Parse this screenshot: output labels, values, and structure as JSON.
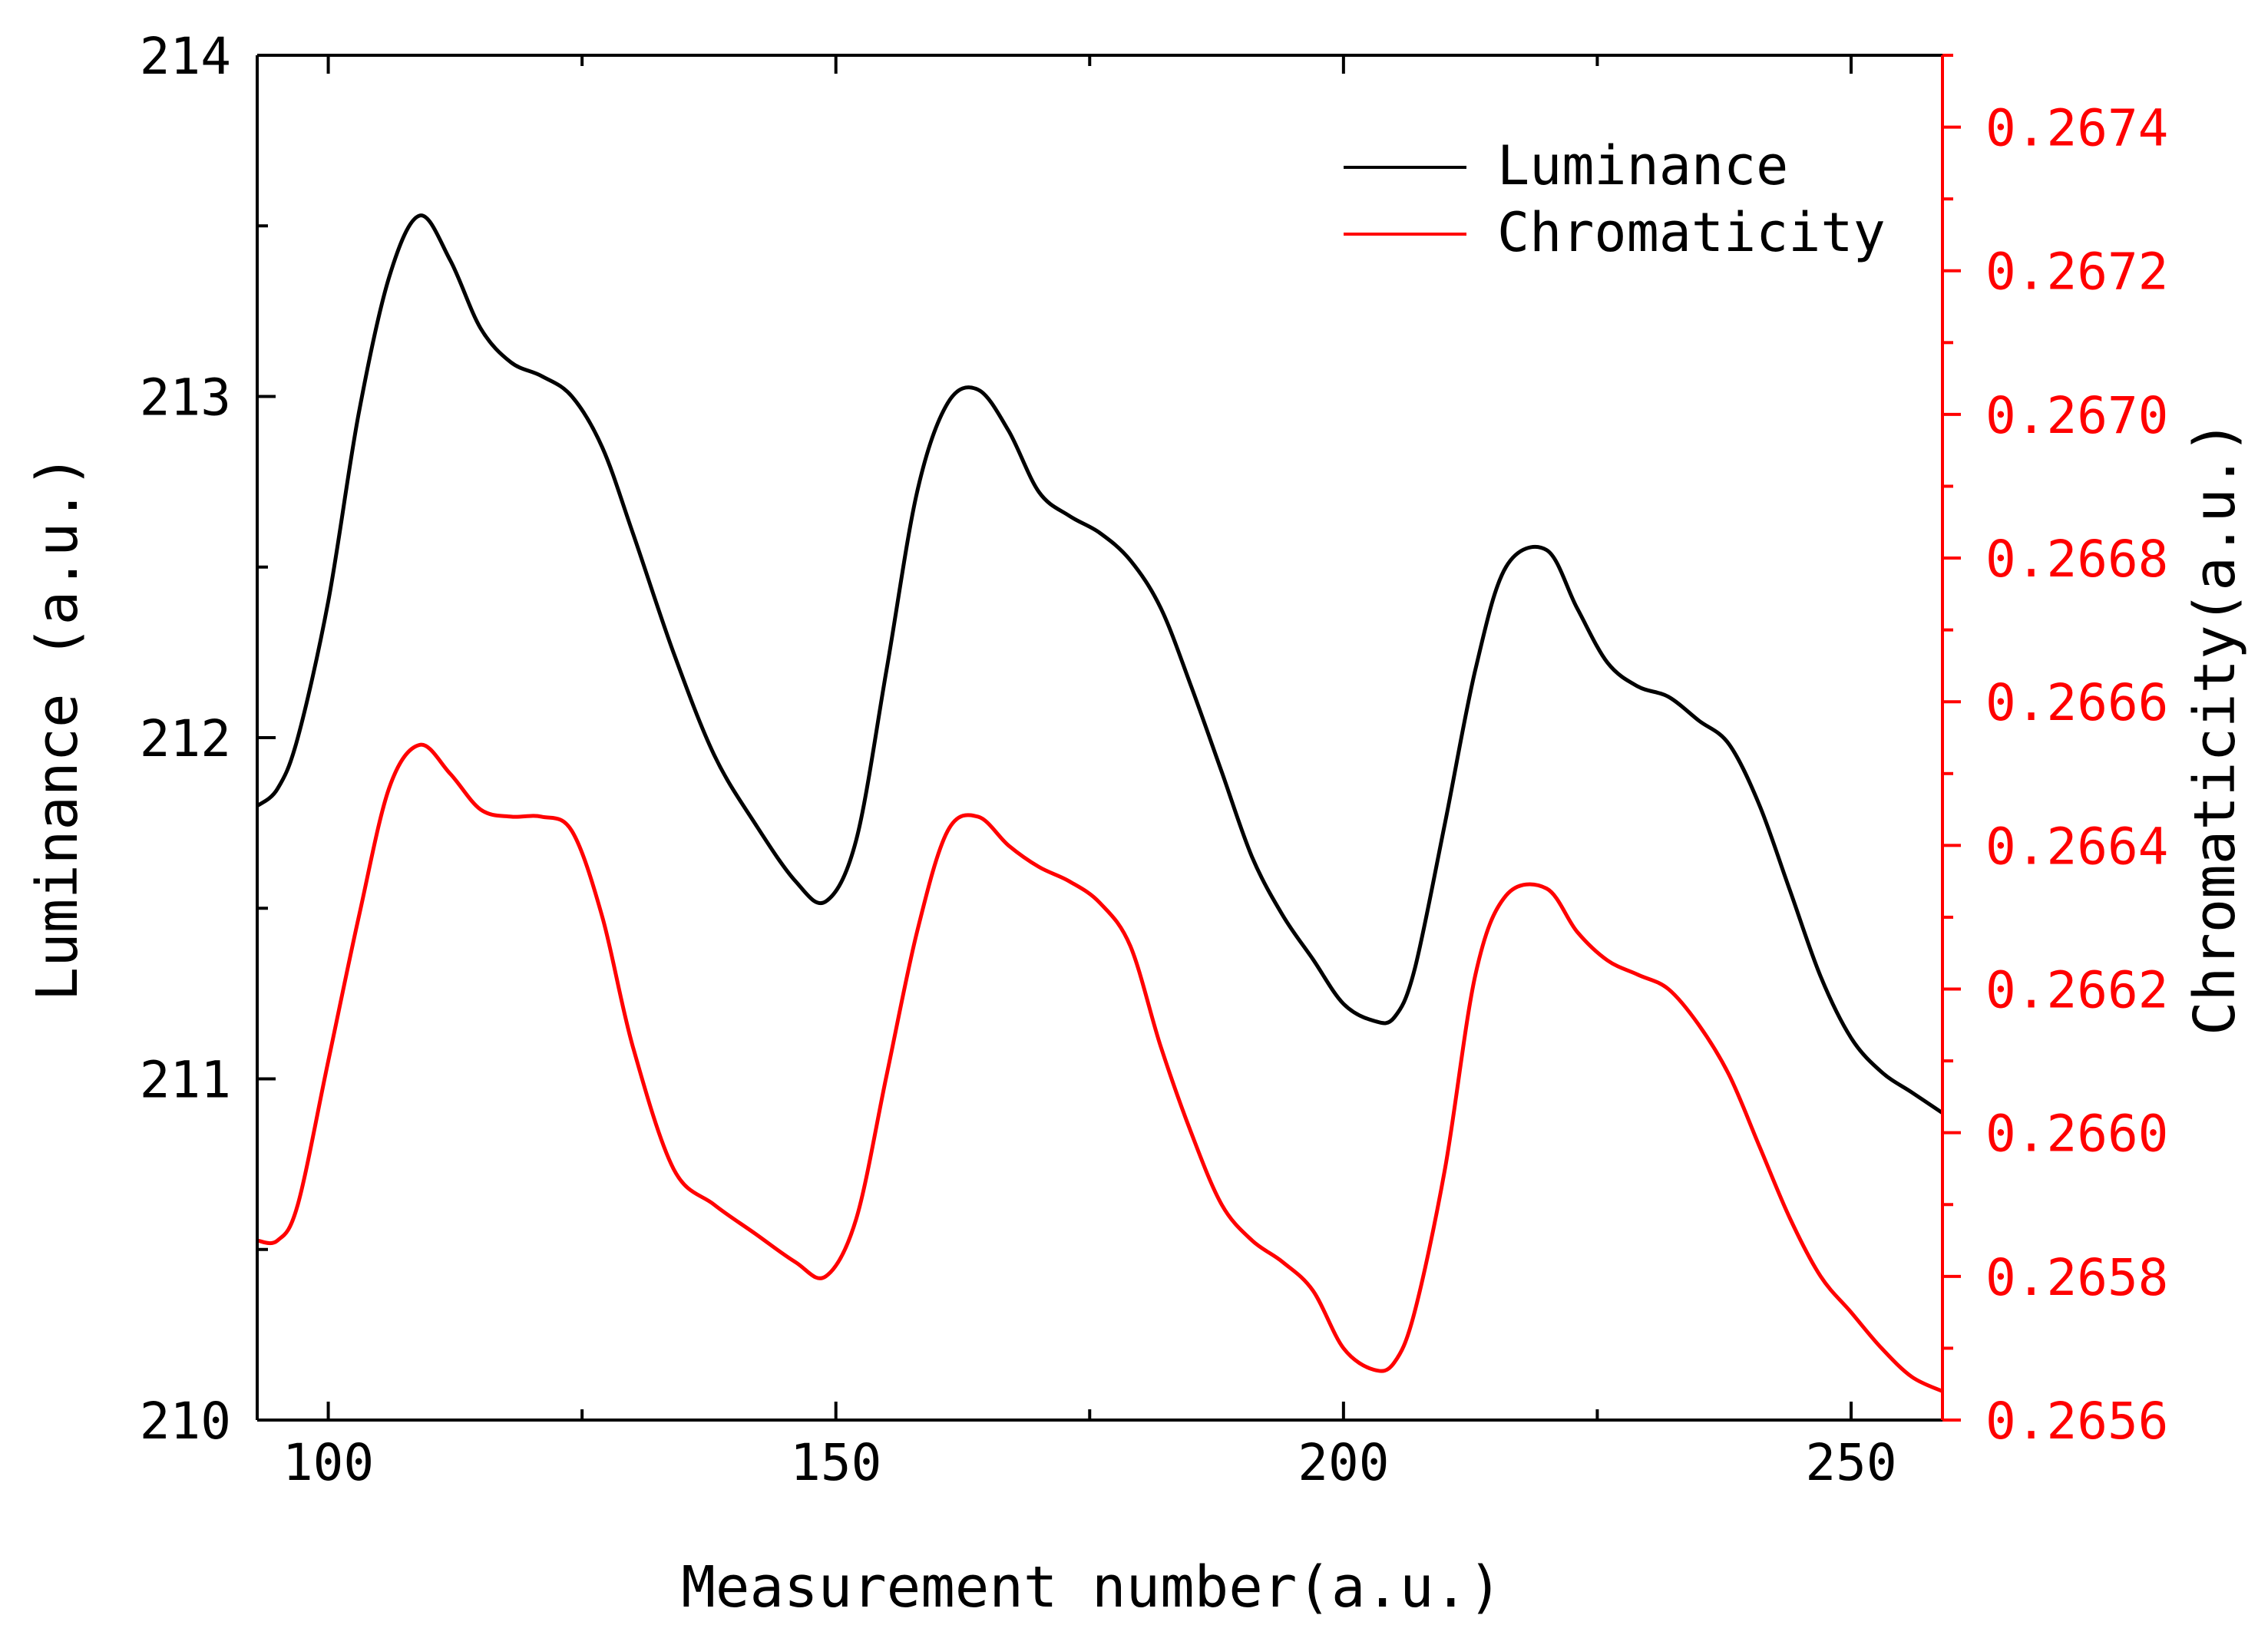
{
  "chart_data": {
    "type": "line",
    "title": "",
    "xlabel": "Measurement number(a.u.)",
    "ylabel": "Luminance (a.u.)",
    "y2label": "Chromaticity(a.u.)",
    "xlim": [
      93,
      259
    ],
    "ylim": [
      210,
      214
    ],
    "y2lim": [
      0.2656,
      0.2675
    ],
    "x_ticks": [
      100,
      150,
      200,
      250
    ],
    "y_ticks": [
      210,
      211,
      212,
      213,
      214
    ],
    "y2_ticks": [
      "0.2656",
      "0.2658",
      "0.2660",
      "0.2662",
      "0.2664",
      "0.2666",
      "0.2668",
      "0.2670",
      "0.2672",
      "0.2674"
    ],
    "grid": false,
    "legend_position": "top-right",
    "colors": {
      "luminance": "#000000",
      "chromaticity": "#ff0000",
      "axis": "#000000",
      "axis2": "#ff0000"
    },
    "series": [
      {
        "name": "Luminance",
        "axis": "left",
        "x": [
          93,
          95,
          97,
          100,
          103,
          106,
          109,
          112,
          115,
          118,
          121,
          124,
          127,
          130,
          134,
          138,
          142,
          146,
          149,
          152,
          155,
          158,
          161,
          164,
          167,
          170,
          173,
          176,
          179,
          182,
          185,
          188,
          191,
          194,
          197,
          200,
          203,
          205,
          207,
          210,
          213,
          216,
          220,
          223,
          226,
          229,
          232,
          235,
          238,
          241,
          244,
          247,
          250,
          253,
          256,
          259
        ],
        "y": [
          211.8,
          211.85,
          212.0,
          212.4,
          212.95,
          213.35,
          213.53,
          213.4,
          213.2,
          213.1,
          213.06,
          213.0,
          212.85,
          212.6,
          212.25,
          211.95,
          211.75,
          211.58,
          211.52,
          211.7,
          212.2,
          212.72,
          212.98,
          213.02,
          212.9,
          212.72,
          212.65,
          212.6,
          212.52,
          212.38,
          212.15,
          211.9,
          211.65,
          211.48,
          211.35,
          211.22,
          211.17,
          211.18,
          211.32,
          211.75,
          212.2,
          212.5,
          212.55,
          212.38,
          212.22,
          212.15,
          212.12,
          212.05,
          211.98,
          211.8,
          211.55,
          211.3,
          211.12,
          211.02,
          210.96,
          210.9
        ]
      },
      {
        "name": "Chromaticity",
        "axis": "right",
        "x": [
          93,
          95,
          97,
          100,
          103,
          106,
          109,
          112,
          115,
          118,
          121,
          124,
          127,
          130,
          134,
          138,
          142,
          146,
          149,
          152,
          155,
          158,
          161,
          164,
          167,
          170,
          173,
          176,
          179,
          182,
          185,
          188,
          191,
          194,
          197,
          200,
          203,
          205,
          207,
          210,
          213,
          216,
          220,
          223,
          226,
          229,
          232,
          235,
          238,
          241,
          244,
          247,
          250,
          253,
          256,
          259
        ],
        "y": [
          0.26585,
          0.26585,
          0.2659,
          0.2661,
          0.2663,
          0.26648,
          0.26654,
          0.2665,
          0.26645,
          0.26644,
          0.26644,
          0.26642,
          0.2663,
          0.26612,
          0.26595,
          0.2659,
          0.26586,
          0.26582,
          0.2658,
          0.26588,
          0.26608,
          0.26628,
          0.26642,
          0.26644,
          0.2664,
          0.26637,
          0.26635,
          0.26632,
          0.26626,
          0.26612,
          0.266,
          0.2659,
          0.26585,
          0.26582,
          0.26578,
          0.2657,
          0.26567,
          0.26568,
          0.26575,
          0.26595,
          0.26622,
          0.26633,
          0.26634,
          0.26628,
          0.26624,
          0.26622,
          0.2662,
          0.26615,
          0.26608,
          0.26598,
          0.26588,
          0.2658,
          0.26575,
          0.2657,
          0.26566,
          0.26564
        ]
      }
    ]
  }
}
